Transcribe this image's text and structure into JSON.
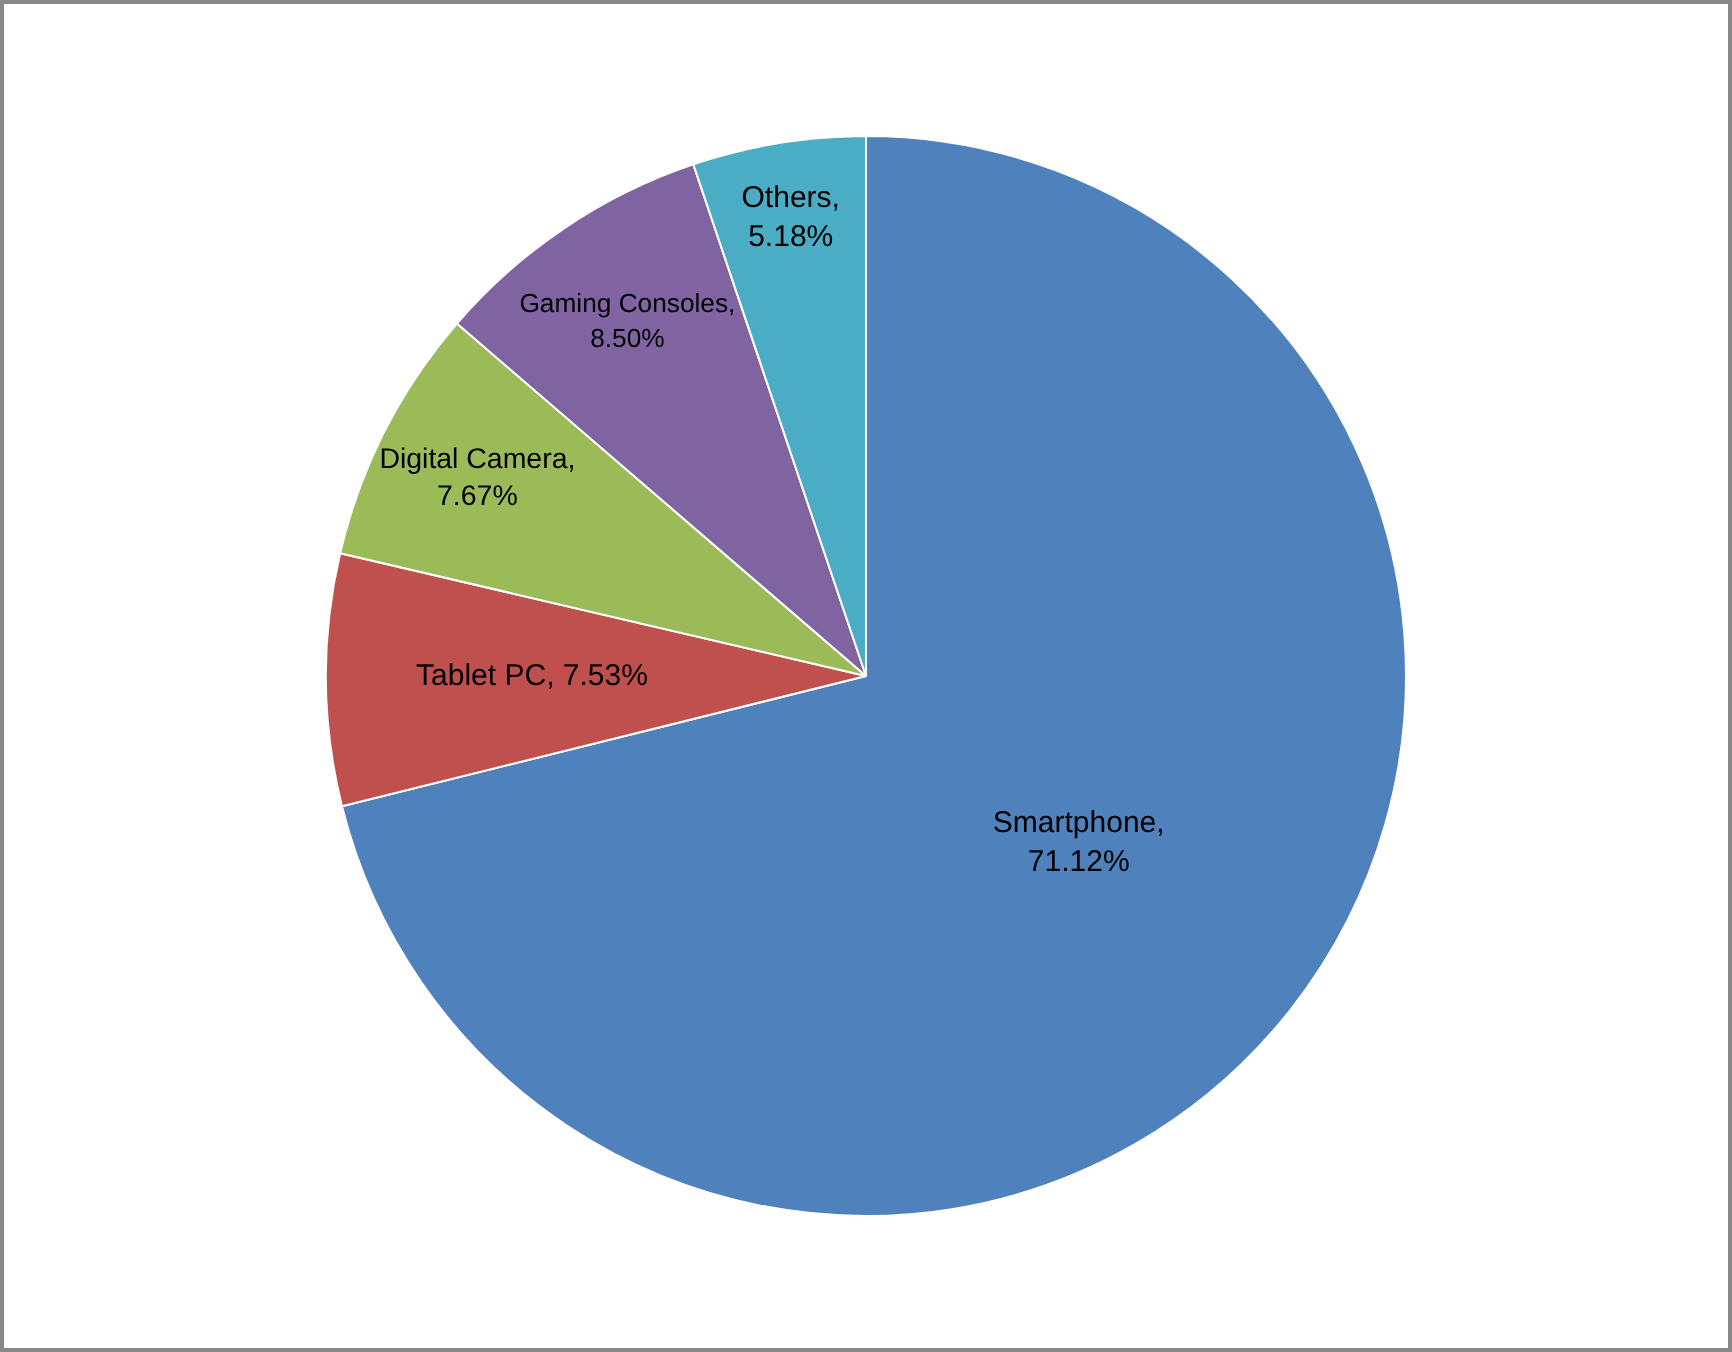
{
  "chart_data": {
    "type": "pie",
    "categories": [
      "Smartphone",
      "Tablet PC",
      "Digital Camera",
      "Gaming Consoles",
      "Others"
    ],
    "values": [
      71.12,
      7.53,
      7.67,
      8.5,
      5.18
    ],
    "colors": [
      "#4f81bd",
      "#c0504d",
      "#9bbb59",
      "#8064a2",
      "#4bacc6"
    ],
    "value_labels": [
      ",\n71.12%",
      ", 7.53%",
      ",\n7.67%",
      ",\n8.50%",
      ",\n5.18%"
    ],
    "legend": false
  }
}
